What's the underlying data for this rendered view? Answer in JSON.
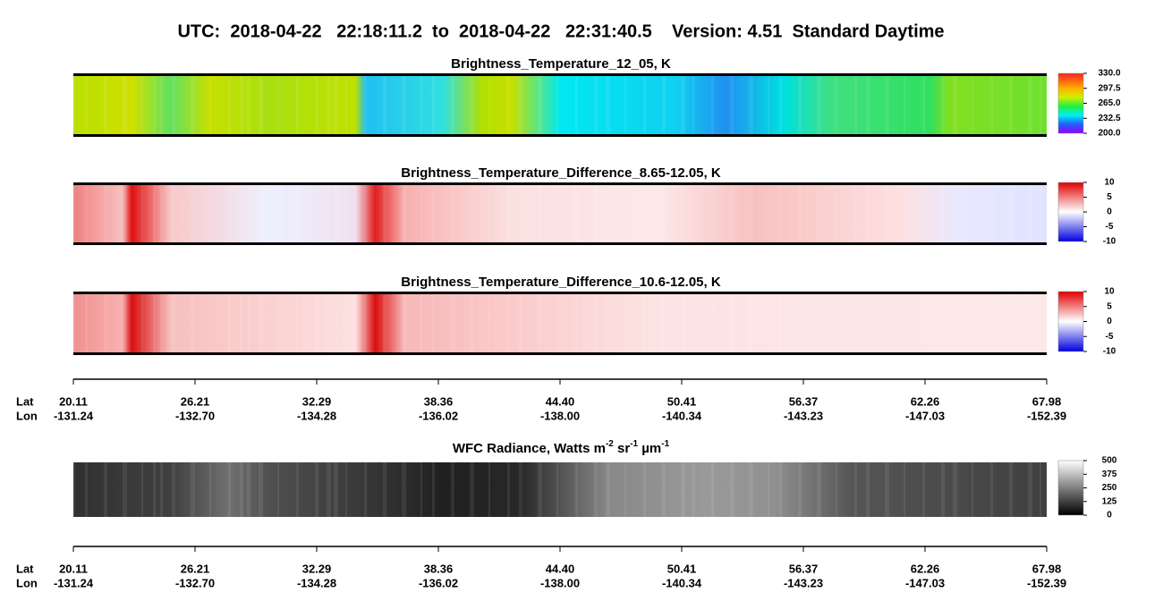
{
  "header": {
    "title": "UTC:  2018-04-22   22:18:11.2  to  2018-04-22   22:31:40.5    Version: 4.51  Standard Daytime"
  },
  "panels": [
    {
      "title": "Brightness_Temperature_12_05, K",
      "colorbar_labels": [
        "330.0",
        "297.5",
        "265.0",
        "232.5",
        "200.0"
      ]
    },
    {
      "title": "Brightness_Temperature_Difference_8.65-12.05, K",
      "colorbar_labels": [
        "10",
        "5",
        "0",
        "-5",
        "-10"
      ]
    },
    {
      "title": "Brightness_Temperature_Difference_10.6-12.05, K",
      "colorbar_labels": [
        "10",
        "5",
        "0",
        "-5",
        "-10"
      ]
    },
    {
      "title_parts": [
        "WFC Radiance, Watts m",
        "-2",
        " sr",
        "-1",
        " µm",
        "-1"
      ],
      "colorbar_labels": [
        "500",
        "375",
        "250",
        "125",
        "0"
      ]
    }
  ],
  "axes": [
    {
      "row_labels": [
        "Lat",
        "Lon"
      ],
      "lat": [
        "20.11",
        "26.21",
        "32.29",
        "38.36",
        "44.40",
        "50.41",
        "56.37",
        "62.26",
        "67.98"
      ],
      "lon": [
        "-131.24",
        "-132.70",
        "-134.28",
        "-136.02",
        "-138.00",
        "-140.34",
        "-143.23",
        "-147.03",
        "-152.39"
      ]
    },
    {
      "row_labels": [
        "Lat",
        "Lon"
      ],
      "lat": [
        "20.11",
        "26.21",
        "32.29",
        "38.36",
        "44.40",
        "50.41",
        "56.37",
        "62.26",
        "67.98"
      ],
      "lon": [
        "-131.24",
        "-132.70",
        "-134.28",
        "-136.02",
        "-138.00",
        "-140.34",
        "-143.23",
        "-147.03",
        "-152.39"
      ]
    }
  ]
}
